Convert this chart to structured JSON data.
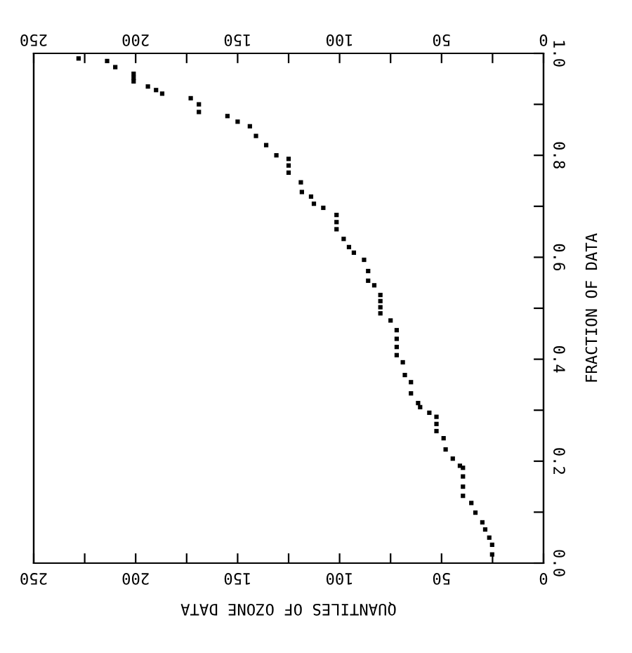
{
  "chart_data": {
    "type": "scatter",
    "xlabel": "QUANTILES OF OZONE DATA",
    "ylabel": "FRACTION OF DATA",
    "xlim": [
      250,
      0
    ],
    "x2lim": [
      250,
      0
    ],
    "xticks": [
      0,
      {
        "value": 25,
        "label": null
      },
      50,
      {
        "value": 75,
        "label": null
      },
      100,
      {
        "value": 125,
        "label": null
      },
      150,
      {
        "value": 175,
        "label": null
      },
      200,
      {
        "value": 225,
        "label": null
      },
      250
    ],
    "x2ticks": [
      0,
      {
        "value": 25,
        "label": null
      },
      50,
      {
        "value": 75,
        "label": null
      },
      100,
      {
        "value": 125,
        "label": null
      },
      150,
      {
        "value": 175,
        "label": null
      },
      200,
      {
        "value": 225,
        "label": null
      },
      250
    ],
    "ylim": [
      0,
      1
    ],
    "yticks": [
      {
        "value": 0,
        "label": "0.0"
      },
      {
        "value": 0.1,
        "label": null
      },
      {
        "value": 0.2,
        "label": "0.2"
      },
      {
        "value": 0.3,
        "label": null
      },
      {
        "value": 0.4,
        "label": "0.4"
      },
      {
        "value": 0.5,
        "label": null
      },
      {
        "value": 0.6,
        "label": "0.6"
      },
      {
        "value": 0.7,
        "label": null
      },
      {
        "value": 0.8,
        "label": "0.8"
      },
      {
        "value": 0.9,
        "label": null
      },
      {
        "value": 1,
        "label": "1.0"
      }
    ],
    "marker": "square",
    "grid": false,
    "legend": false,
    "series": [
      {
        "color": "#000000",
        "x": [
          228,
          214,
          210,
          201,
          201,
          201,
          194,
          190,
          187,
          173,
          169,
          169,
          155,
          150,
          144,
          141,
          136,
          131,
          125,
          125,
          125,
          119,
          118.5,
          114,
          112.6,
          108,
          101.5,
          101.5,
          101.5,
          98,
          95.4,
          93,
          88,
          86,
          86,
          83,
          80,
          80,
          80,
          80,
          75,
          72,
          72,
          72,
          72,
          69,
          68,
          65,
          65,
          61.5,
          60.5,
          56,
          52.5,
          52.5,
          52.5,
          49,
          48,
          44.5,
          41,
          39.5,
          39.5,
          39.5,
          39.5,
          35.4,
          33.4,
          30,
          28.6,
          26.6,
          25.2,
          25.2
        ],
        "values": [
          0.99,
          0.985,
          0.973,
          0.96,
          0.952,
          0.945,
          0.935,
          0.928,
          0.921,
          0.912,
          0.9,
          0.885,
          0.877,
          0.866,
          0.857,
          0.838,
          0.82,
          0.8,
          0.793,
          0.78,
          0.766,
          0.747,
          0.728,
          0.719,
          0.705,
          0.697,
          0.683,
          0.669,
          0.655,
          0.636,
          0.62,
          0.609,
          0.595,
          0.573,
          0.554,
          0.545,
          0.526,
          0.514,
          0.502,
          0.49,
          0.476,
          0.457,
          0.44,
          0.424,
          0.408,
          0.394,
          0.369,
          0.355,
          0.333,
          0.314,
          0.306,
          0.295,
          0.287,
          0.273,
          0.259,
          0.245,
          0.223,
          0.205,
          0.191,
          0.187,
          0.17,
          0.15,
          0.132,
          0.118,
          0.099,
          0.08,
          0.066,
          0.05,
          0.036,
          0.017
        ]
      }
    ]
  }
}
